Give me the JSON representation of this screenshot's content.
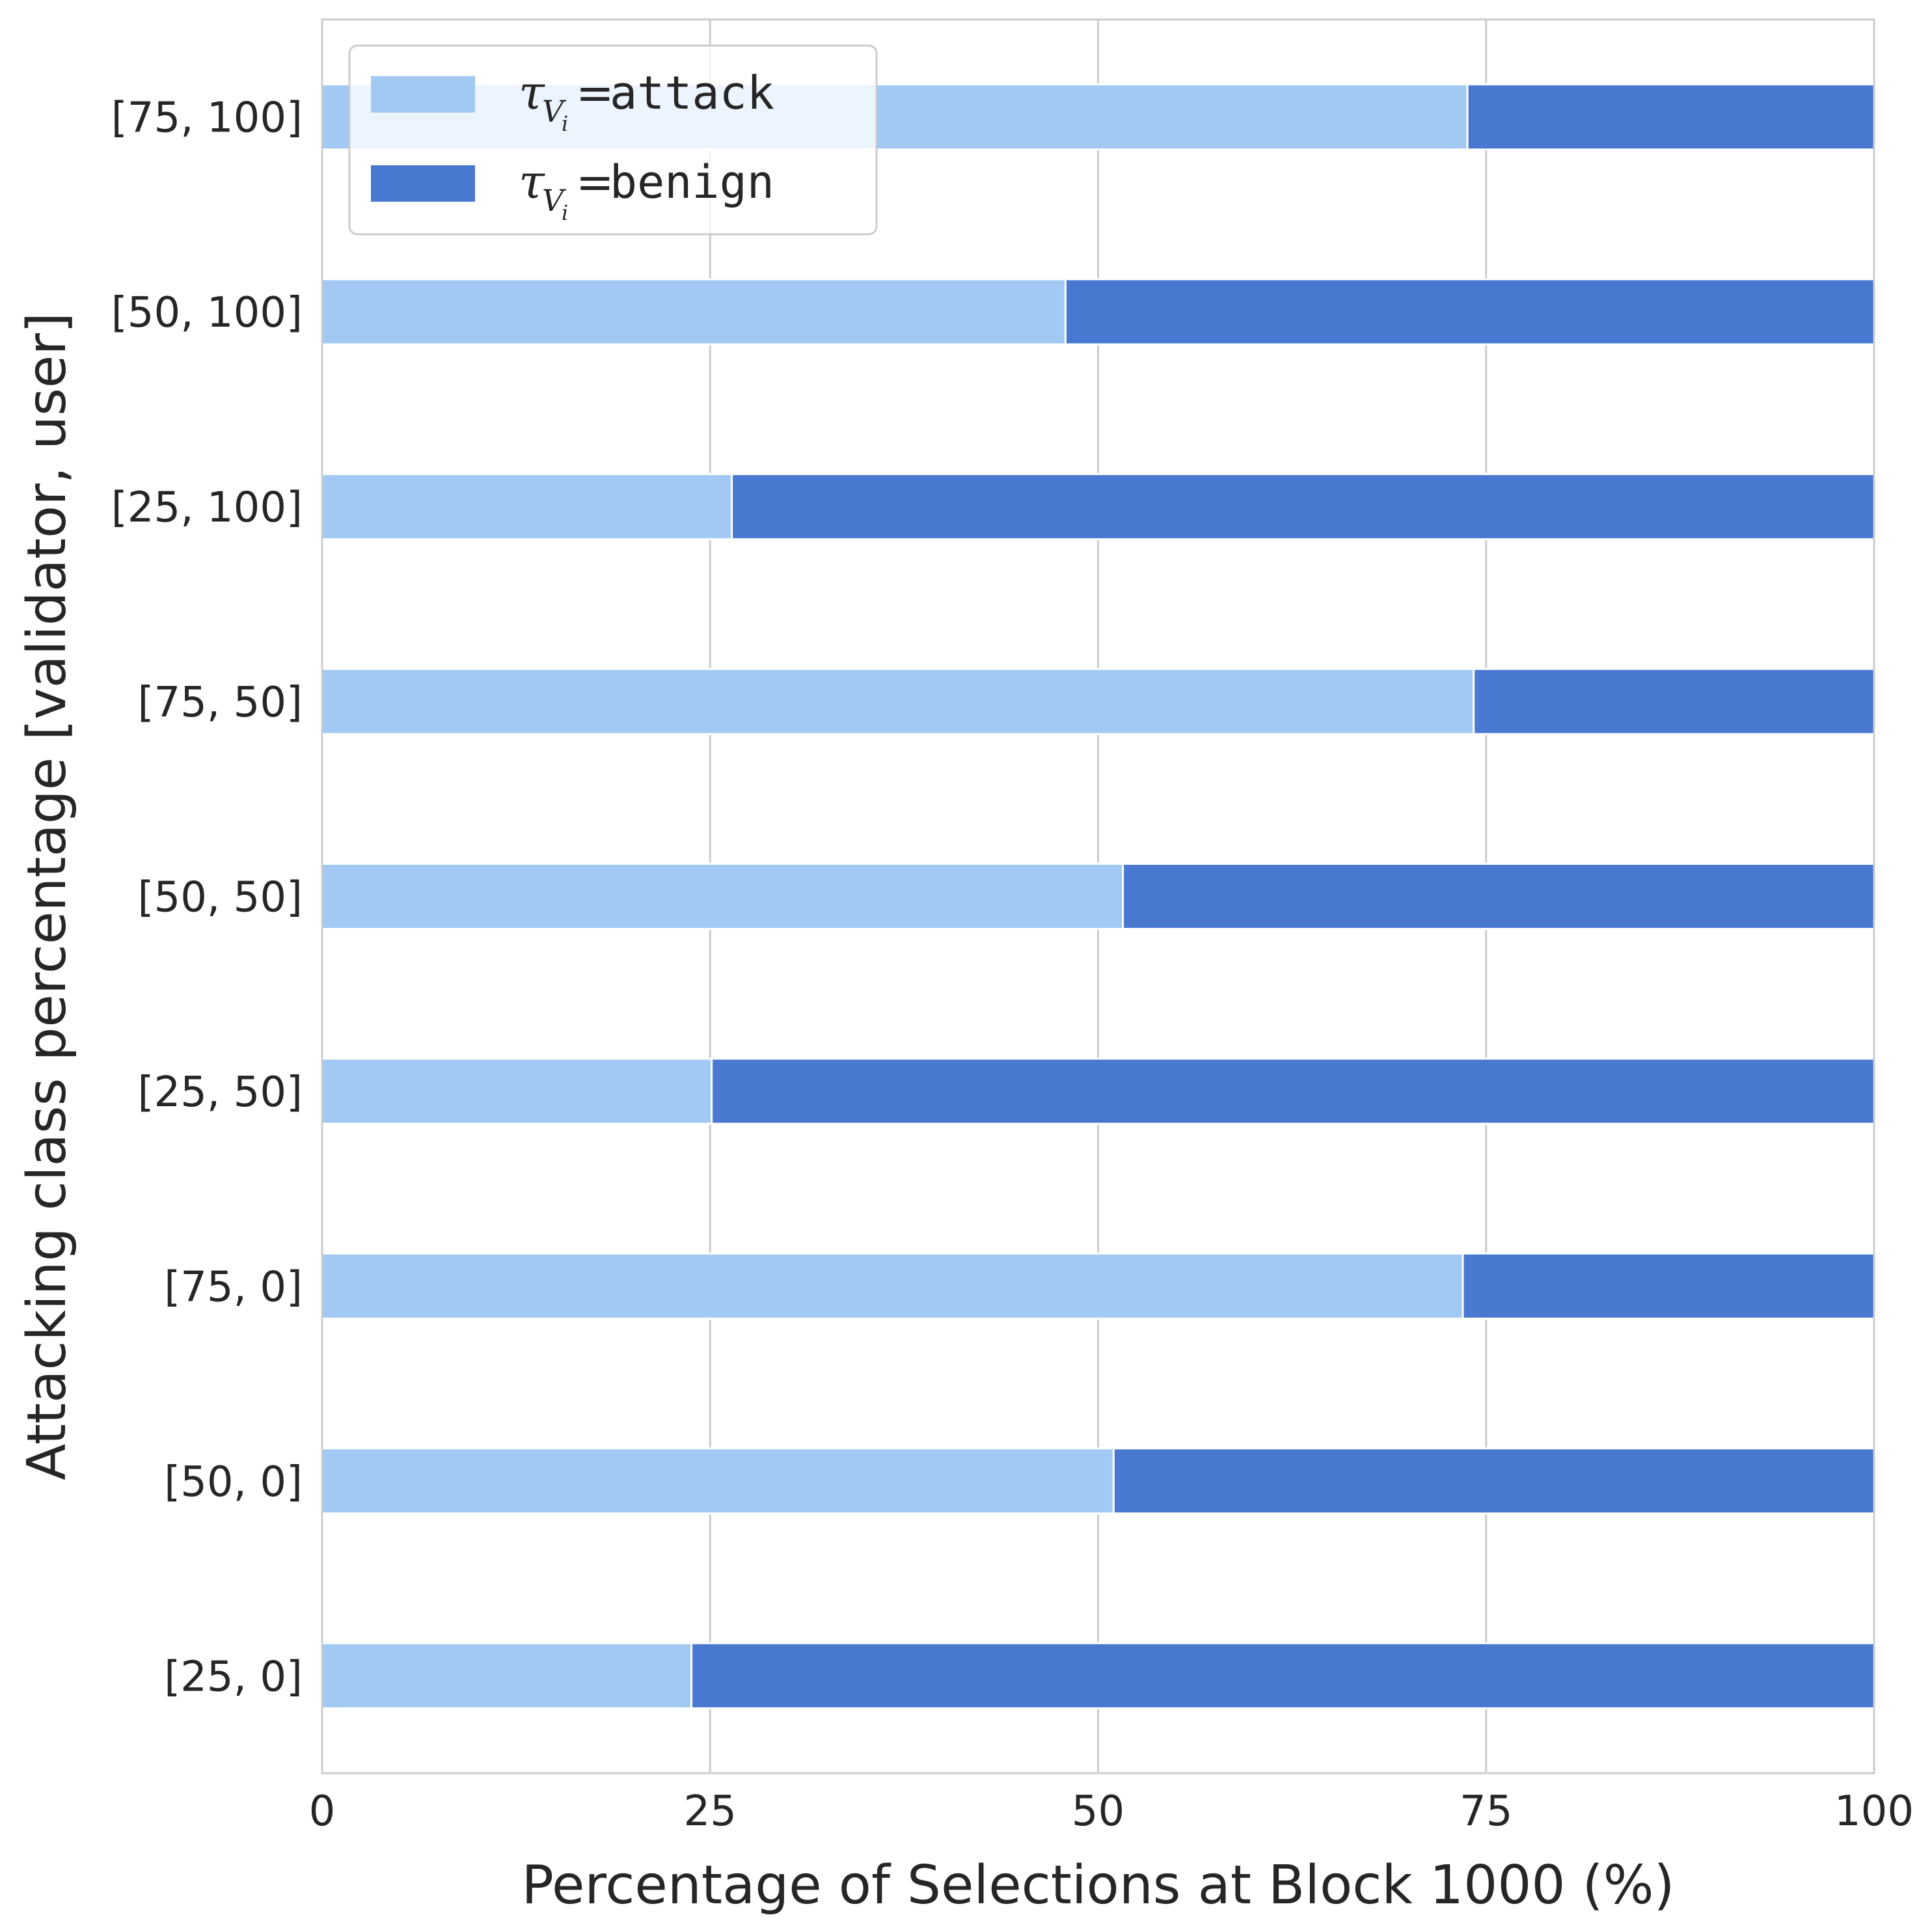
{
  "chart_data": {
    "type": "bar",
    "orientation": "horizontal",
    "stacked": true,
    "xlabel": "Percentage of Selections at Block 1000 (%)",
    "ylabel": "Attacking class percentage [validator, user]",
    "xlim": [
      0,
      100
    ],
    "xticks": [
      0,
      25,
      50,
      75,
      100
    ],
    "categories": [
      "[25, 0]",
      "[50, 0]",
      "[75, 0]",
      "[25, 50]",
      "[50, 50]",
      "[75, 50]",
      "[25, 100]",
      "[50, 100]",
      "[75, 100]"
    ],
    "series": [
      {
        "key": "attack",
        "name_prefix": "τ",
        "name_sub": "V",
        "name_subsub": "i",
        "name_eq": "=",
        "name_text": "attack",
        "color": "#a1c9f4",
        "values": [
          23.8,
          51.0,
          73.5,
          25.1,
          51.6,
          74.2,
          26.4,
          47.9,
          73.8
        ]
      },
      {
        "key": "benign",
        "name_prefix": "τ",
        "name_sub": "V",
        "name_subsub": "i",
        "name_eq": "=",
        "name_text": "benign",
        "color": "#4878d0",
        "values": [
          76.2,
          49.0,
          26.5,
          74.9,
          48.4,
          25.8,
          73.6,
          52.1,
          26.2
        ]
      }
    ],
    "grid": "vertical",
    "legend_position": "top-left"
  }
}
